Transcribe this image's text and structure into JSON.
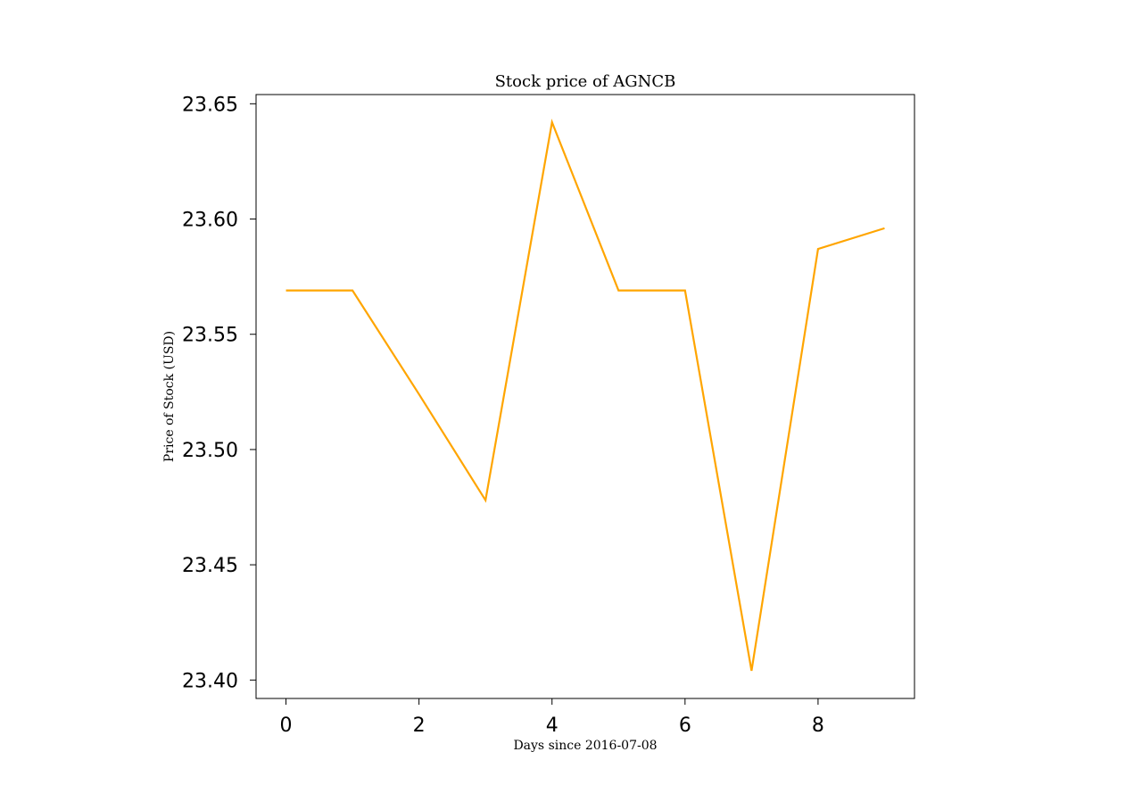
{
  "chart_data": {
    "type": "line",
    "title": "Stock price of AGNCB",
    "xlabel": "Days since 2016-07-08",
    "ylabel": "Price of Stock (USD)",
    "xlim": [
      -0.45,
      9.45
    ],
    "ylim": [
      23.392,
      23.654
    ],
    "x_ticks": [
      0,
      2,
      4,
      6,
      8
    ],
    "x_tick_labels": [
      "0",
      "2",
      "4",
      "6",
      "8"
    ],
    "y_ticks": [
      23.4,
      23.45,
      23.5,
      23.55,
      23.6,
      23.65
    ],
    "y_tick_labels": [
      "23.40",
      "23.45",
      "23.50",
      "23.55",
      "23.60",
      "23.65"
    ],
    "grid": false,
    "series": [
      {
        "color": "#FFA500",
        "x": [
          0,
          1,
          2,
          3,
          4,
          5,
          6,
          7,
          8,
          9
        ],
        "values": [
          23.569,
          23.569,
          23.524,
          23.478,
          23.642,
          23.569,
          23.569,
          23.404,
          23.587,
          23.596
        ]
      }
    ]
  }
}
